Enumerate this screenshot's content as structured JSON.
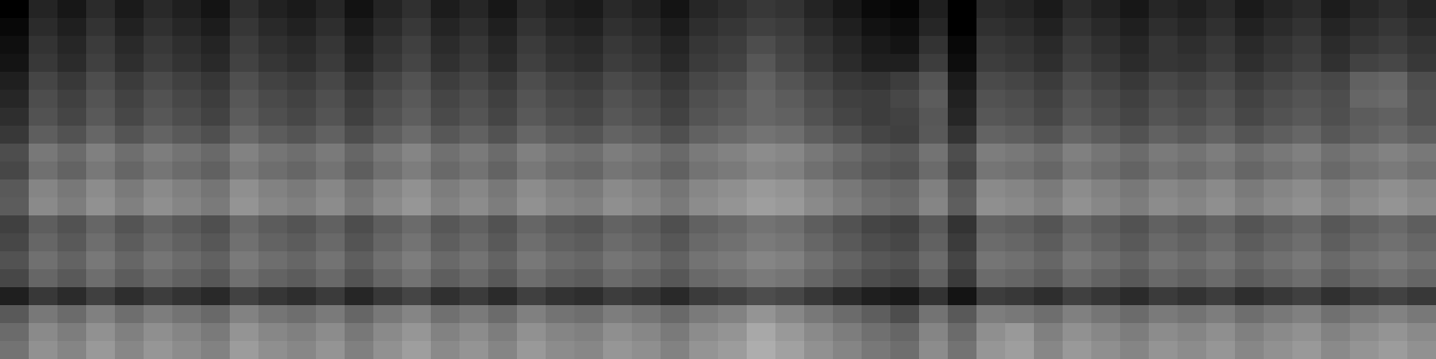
{
  "chart_data": {
    "type": "heatmap",
    "xlim": [
      0,
      50
    ],
    "ylim": [
      0,
      20
    ],
    "zlim": [
      0,
      100
    ],
    "tick_labels": false,
    "cells": [
      [
        0,
        14,
        9,
        17,
        10,
        16,
        12,
        8,
        18,
        13,
        10,
        15,
        7,
        14,
        19,
        11,
        15,
        9,
        17,
        12,
        10,
        16,
        13,
        8,
        15,
        18,
        22,
        20,
        14,
        9,
        4,
        2,
        12,
        0,
        16,
        14,
        10,
        17,
        13,
        9,
        15,
        12,
        16,
        10,
        14,
        17,
        11,
        15,
        18,
        14
      ],
      [
        3,
        17,
        12,
        20,
        13,
        19,
        15,
        11,
        21,
        16,
        13,
        18,
        10,
        17,
        22,
        14,
        18,
        12,
        20,
        15,
        13,
        19,
        16,
        11,
        18,
        21,
        25,
        23,
        17,
        12,
        7,
        5,
        15,
        0,
        19,
        17,
        13,
        20,
        16,
        12,
        18,
        15,
        19,
        13,
        17,
        20,
        14,
        18,
        21,
        17
      ],
      [
        6,
        20,
        15,
        23,
        16,
        22,
        18,
        14,
        24,
        19,
        16,
        21,
        13,
        20,
        25,
        17,
        21,
        15,
        23,
        18,
        16,
        22,
        19,
        14,
        21,
        24,
        30,
        26,
        20,
        15,
        10,
        8,
        20,
        3,
        22,
        20,
        16,
        23,
        19,
        15,
        21,
        18,
        22,
        16,
        20,
        23,
        17,
        21,
        24,
        20
      ],
      [
        8,
        22,
        17,
        25,
        18,
        24,
        20,
        16,
        26,
        21,
        18,
        23,
        15,
        22,
        27,
        19,
        23,
        17,
        25,
        20,
        18,
        24,
        21,
        16,
        23,
        26,
        34,
        28,
        22,
        17,
        12,
        12,
        24,
        5,
        24,
        22,
        18,
        25,
        21,
        17,
        21,
        20,
        24,
        18,
        22,
        25,
        19,
        26,
        28,
        22
      ],
      [
        12,
        27,
        22,
        30,
        23,
        29,
        25,
        21,
        31,
        26,
        23,
        28,
        20,
        27,
        32,
        24,
        28,
        22,
        30,
        25,
        23,
        29,
        26,
        21,
        28,
        31,
        38,
        33,
        27,
        22,
        20,
        24,
        33,
        10,
        29,
        27,
        23,
        30,
        26,
        22,
        28,
        25,
        29,
        23,
        27,
        30,
        28,
        38,
        40,
        30
      ],
      [
        15,
        30,
        25,
        33,
        26,
        32,
        28,
        24,
        34,
        29,
        26,
        31,
        23,
        30,
        35,
        27,
        31,
        25,
        33,
        28,
        26,
        32,
        29,
        24,
        31,
        34,
        40,
        36,
        30,
        25,
        24,
        28,
        36,
        13,
        32,
        30,
        26,
        33,
        29,
        25,
        31,
        28,
        32,
        26,
        30,
        33,
        30,
        40,
        42,
        32
      ],
      [
        18,
        32,
        27,
        35,
        28,
        34,
        30,
        26,
        36,
        31,
        28,
        33,
        25,
        32,
        37,
        29,
        33,
        27,
        35,
        30,
        28,
        34,
        31,
        26,
        33,
        36,
        40,
        38,
        32,
        27,
        24,
        26,
        34,
        15,
        34,
        32,
        28,
        35,
        31,
        27,
        33,
        30,
        34,
        28,
        32,
        35,
        31,
        36,
        38,
        32
      ],
      [
        22,
        37,
        32,
        40,
        33,
        39,
        35,
        31,
        41,
        36,
        33,
        38,
        30,
        37,
        42,
        34,
        38,
        32,
        40,
        35,
        33,
        39,
        36,
        31,
        38,
        41,
        45,
        43,
        37,
        32,
        27,
        25,
        35,
        20,
        39,
        37,
        33,
        40,
        36,
        32,
        38,
        35,
        39,
        33,
        37,
        40,
        34,
        38,
        41,
        37
      ],
      [
        30,
        47,
        42,
        50,
        43,
        49,
        45,
        41,
        51,
        46,
        43,
        48,
        40,
        47,
        52,
        44,
        48,
        42,
        50,
        45,
        43,
        49,
        46,
        41,
        48,
        51,
        55,
        53,
        47,
        42,
        37,
        35,
        45,
        30,
        49,
        47,
        43,
        50,
        46,
        42,
        48,
        45,
        49,
        43,
        47,
        50,
        44,
        48,
        51,
        47
      ],
      [
        28,
        44,
        39,
        47,
        40,
        46,
        42,
        38,
        48,
        43,
        40,
        45,
        37,
        44,
        49,
        41,
        45,
        39,
        47,
        42,
        40,
        46,
        43,
        38,
        45,
        48,
        52,
        50,
        44,
        39,
        34,
        32,
        42,
        27,
        46,
        44,
        40,
        47,
        43,
        39,
        45,
        42,
        46,
        40,
        44,
        47,
        41,
        45,
        48,
        44
      ],
      [
        35,
        52,
        47,
        55,
        48,
        54,
        50,
        46,
        56,
        51,
        48,
        53,
        45,
        52,
        57,
        49,
        53,
        47,
        55,
        50,
        48,
        54,
        51,
        46,
        53,
        56,
        60,
        58,
        52,
        47,
        42,
        40,
        50,
        35,
        54,
        52,
        48,
        55,
        51,
        47,
        53,
        50,
        54,
        48,
        52,
        55,
        49,
        53,
        56,
        52
      ],
      [
        36,
        54,
        49,
        57,
        50,
        56,
        52,
        48,
        58,
        53,
        50,
        55,
        47,
        54,
        59,
        51,
        55,
        49,
        57,
        52,
        50,
        56,
        53,
        48,
        55,
        58,
        62,
        60,
        54,
        49,
        44,
        42,
        52,
        37,
        56,
        54,
        50,
        57,
        53,
        49,
        55,
        52,
        56,
        50,
        54,
        57,
        51,
        55,
        58,
        54
      ],
      [
        25,
        37,
        32,
        40,
        33,
        39,
        35,
        31,
        41,
        36,
        33,
        38,
        30,
        37,
        42,
        34,
        38,
        32,
        40,
        35,
        33,
        39,
        36,
        31,
        38,
        41,
        45,
        43,
        37,
        32,
        27,
        25,
        35,
        20,
        39,
        37,
        33,
        40,
        36,
        32,
        38,
        35,
        39,
        33,
        37,
        40,
        34,
        38,
        41,
        37
      ],
      [
        28,
        40,
        35,
        43,
        36,
        42,
        38,
        34,
        44,
        39,
        36,
        41,
        33,
        40,
        45,
        37,
        41,
        35,
        43,
        38,
        36,
        42,
        39,
        34,
        41,
        44,
        48,
        46,
        40,
        35,
        30,
        28,
        38,
        23,
        42,
        40,
        36,
        43,
        39,
        35,
        41,
        38,
        42,
        36,
        40,
        43,
        37,
        41,
        44,
        40
      ],
      [
        32,
        44,
        39,
        47,
        40,
        46,
        42,
        38,
        48,
        43,
        40,
        45,
        37,
        44,
        49,
        41,
        45,
        39,
        47,
        42,
        40,
        46,
        43,
        38,
        45,
        48,
        52,
        50,
        44,
        39,
        34,
        32,
        42,
        27,
        46,
        44,
        40,
        47,
        43,
        39,
        45,
        42,
        46,
        40,
        44,
        47,
        41,
        45,
        48,
        44
      ],
      [
        28,
        40,
        35,
        43,
        36,
        42,
        38,
        34,
        44,
        39,
        36,
        41,
        33,
        40,
        45,
        37,
        41,
        35,
        43,
        38,
        36,
        42,
        39,
        34,
        41,
        44,
        48,
        46,
        40,
        35,
        30,
        28,
        38,
        23,
        42,
        40,
        36,
        43,
        39,
        35,
        41,
        38,
        42,
        36,
        40,
        43,
        37,
        41,
        44,
        40
      ],
      [
        12,
        22,
        17,
        25,
        18,
        24,
        20,
        16,
        26,
        21,
        18,
        23,
        15,
        22,
        27,
        19,
        23,
        17,
        25,
        20,
        18,
        24,
        21,
        16,
        23,
        26,
        30,
        28,
        22,
        17,
        12,
        10,
        20,
        8,
        24,
        22,
        18,
        25,
        21,
        17,
        23,
        20,
        24,
        18,
        22,
        25,
        19,
        23,
        26,
        22
      ],
      [
        35,
        47,
        42,
        50,
        43,
        49,
        45,
        41,
        51,
        46,
        43,
        48,
        40,
        47,
        52,
        44,
        48,
        42,
        50,
        45,
        43,
        49,
        46,
        41,
        48,
        51,
        58,
        53,
        47,
        42,
        37,
        30,
        45,
        35,
        49,
        47,
        43,
        50,
        46,
        42,
        48,
        45,
        49,
        43,
        47,
        50,
        44,
        48,
        51,
        47
      ],
      [
        42,
        54,
        49,
        57,
        50,
        56,
        52,
        48,
        58,
        53,
        50,
        55,
        47,
        54,
        59,
        51,
        55,
        49,
        57,
        52,
        50,
        56,
        53,
        48,
        55,
        58,
        66,
        60,
        54,
        49,
        44,
        40,
        52,
        42,
        56,
        60,
        50,
        57,
        53,
        49,
        55,
        52,
        56,
        50,
        54,
        57,
        51,
        55,
        58,
        54
      ],
      [
        45,
        57,
        52,
        60,
        53,
        59,
        55,
        51,
        61,
        56,
        53,
        58,
        50,
        57,
        62,
        54,
        58,
        52,
        60,
        55,
        53,
        59,
        56,
        51,
        58,
        61,
        68,
        63,
        57,
        52,
        47,
        43,
        55,
        45,
        59,
        62,
        53,
        60,
        56,
        52,
        58,
        55,
        59,
        53,
        57,
        60,
        54,
        58,
        61,
        57
      ]
    ]
  }
}
